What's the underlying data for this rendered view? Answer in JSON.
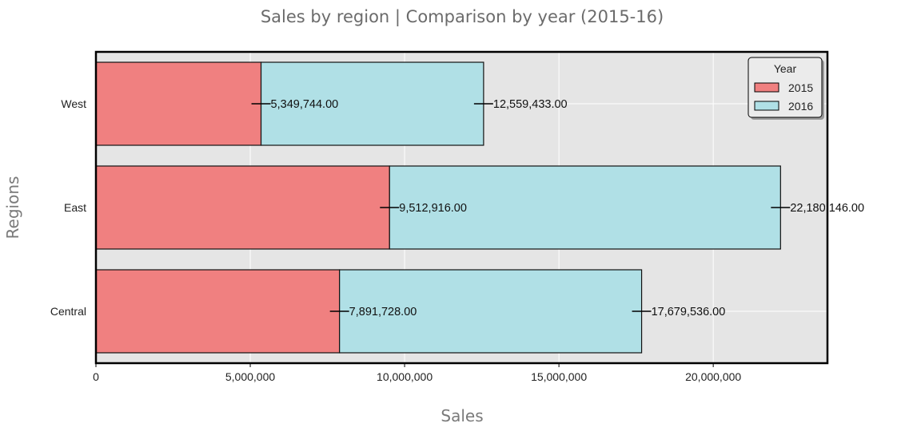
{
  "chart_data": {
    "type": "bar",
    "orientation": "horizontal",
    "stacked": true,
    "title": "Sales by region | Comparison by year (2015-16)",
    "xlabel": "Sales",
    "ylabel": "Regions",
    "categories": [
      "West",
      "East",
      "Central"
    ],
    "series": [
      {
        "name": "2015",
        "color": "#f08080",
        "values": [
          5349744.0,
          9512916.0,
          7891728.0
        ],
        "labels": [
          "5,349,744.00",
          "9,512,916.00",
          "7,891,728.00"
        ]
      },
      {
        "name": "2016",
        "color": "#b0e0e6",
        "values": [
          7209689.0,
          12667230.0,
          9787808.0
        ],
        "cumulative_labels": [
          "12,559,433.00",
          "22,180,146.00",
          "17,679,536.00"
        ]
      }
    ],
    "xlim": [
      0,
      23700000
    ],
    "xticks": [
      0,
      5000000,
      10000000,
      15000000,
      20000000
    ],
    "xtick_labels": [
      "0",
      "5,000,000",
      "10,000,000",
      "15,000,000",
      "20,000,000"
    ],
    "legend": {
      "title": "Year",
      "position": "top-right"
    },
    "grid": true,
    "background": "#e5e5e5"
  }
}
